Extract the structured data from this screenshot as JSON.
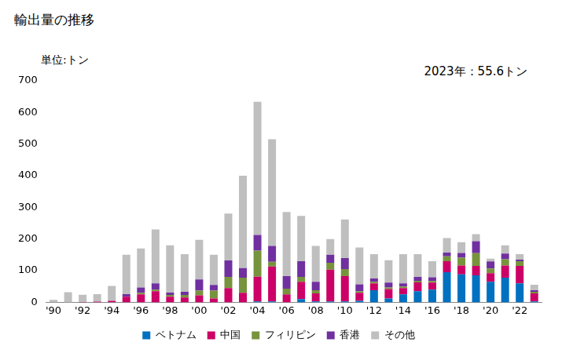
{
  "chart_data": {
    "type": "bar",
    "title": "輸出量の推移",
    "ylabel": "単位:トン",
    "annotations": [
      "2023年：55.6トン"
    ],
    "categories": [
      "'90",
      null,
      "'92",
      null,
      "'94",
      null,
      "'96",
      null,
      "'98",
      null,
      "'00",
      null,
      "'02",
      null,
      "'04",
      null,
      "'06",
      null,
      "'08",
      null,
      "'10",
      null,
      "'12",
      null,
      "'14",
      null,
      "'16",
      null,
      "'18",
      null,
      "'20",
      null,
      "'22",
      null
    ],
    "series": [
      {
        "name": "ベトナム",
        "color": "#0070c0",
        "values": [
          0,
          0,
          0,
          0,
          0,
          0,
          0,
          0,
          0,
          0,
          0,
          0,
          0,
          0,
          3,
          3,
          0,
          10,
          3,
          3,
          3,
          5,
          38,
          12,
          25,
          35,
          40,
          95,
          88,
          85,
          65,
          78,
          60,
          3
        ]
      },
      {
        "name": "中国",
        "color": "#cc0066",
        "values": [
          0,
          0,
          1,
          2,
          5,
          18,
          25,
          35,
          18,
          15,
          22,
          12,
          45,
          30,
          78,
          110,
          25,
          55,
          25,
          100,
          80,
          25,
          22,
          30,
          20,
          28,
          22,
          35,
          28,
          30,
          27,
          38,
          55,
          25
        ]
      },
      {
        "name": "フィリピン",
        "color": "#77933c",
        "values": [
          0,
          0,
          0,
          0,
          0,
          0,
          5,
          5,
          5,
          8,
          15,
          25,
          35,
          48,
          82,
          15,
          18,
          15,
          10,
          22,
          22,
          5,
          5,
          5,
          5,
          5,
          5,
          15,
          25,
          40,
          15,
          20,
          15,
          5
        ]
      },
      {
        "name": "香港",
        "color": "#7030a0",
        "values": [
          0,
          0,
          0,
          0,
          0,
          8,
          17,
          20,
          8,
          10,
          35,
          18,
          52,
          30,
          50,
          50,
          40,
          50,
          27,
          25,
          35,
          22,
          10,
          15,
          10,
          12,
          12,
          12,
          15,
          38,
          22,
          18,
          5,
          5
        ]
      },
      {
        "name": "その他",
        "color": "#bfbfbf",
        "values": [
          8,
          32,
          23,
          24,
          47,
          124,
          123,
          170,
          149,
          119,
          125,
          95,
          148,
          292,
          420,
          337,
          202,
          143,
          113,
          50,
          122,
          116,
          77,
          71,
          92,
          72,
          51,
          46,
          34,
          22,
          9,
          26,
          17,
          17.6
        ]
      }
    ],
    "ylim": [
      0,
      700
    ],
    "yticks": [
      0,
      100,
      200,
      300,
      400,
      500,
      600,
      700
    ],
    "stacked": true,
    "grid": false,
    "legend": "bottom"
  }
}
